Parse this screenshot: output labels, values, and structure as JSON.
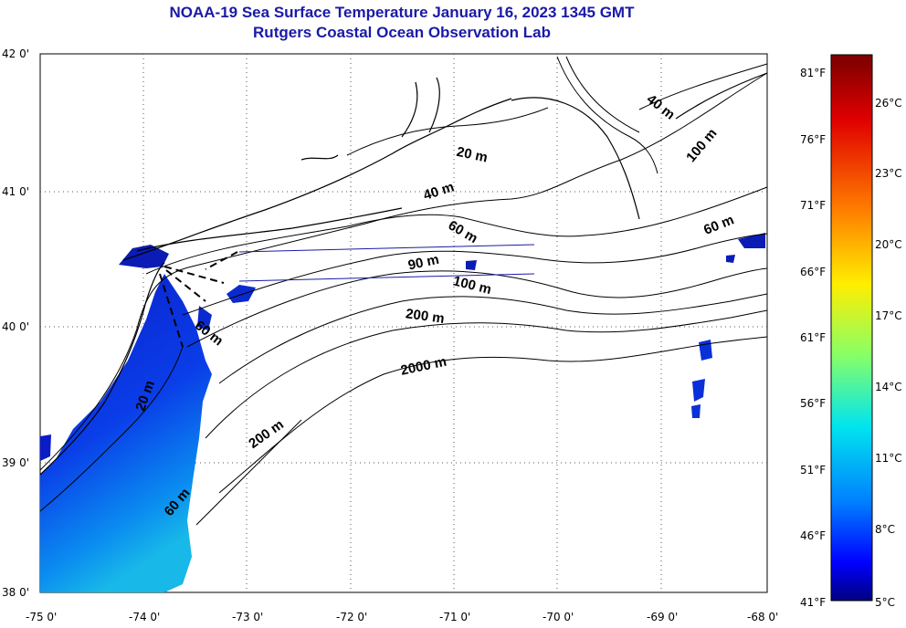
{
  "title": {
    "line1": "NOAA-19 Sea Surface Temperature January 16, 2023 1345 GMT",
    "line2": "Rutgers Coastal Ocean Observation Lab"
  },
  "map": {
    "lat_ticks": [
      "42 0'",
      "41 0'",
      "40 0'",
      "39 0'",
      "38 0'"
    ],
    "lon_ticks": [
      "-75 0'",
      "-74 0'",
      "-73 0'",
      "-72 0'",
      "-71 0'",
      "-70 0'",
      "-69 0'",
      "-68 0'"
    ],
    "lat_range": [
      38,
      42
    ],
    "lon_range": [
      -75,
      -68
    ],
    "contour_labels": [
      {
        "text": "20 m",
        "lon": -70.85,
        "lat": 41.22,
        "angle": 12
      },
      {
        "text": "40 m",
        "lon": -71.15,
        "lat": 40.95,
        "angle": -18
      },
      {
        "text": "40 m",
        "lon": -69.05,
        "lat": 41.58,
        "angle": 38
      },
      {
        "text": "100 m",
        "lon": -68.6,
        "lat": 41.3,
        "angle": -50
      },
      {
        "text": "60 m",
        "lon": -70.95,
        "lat": 40.65,
        "angle": 30
      },
      {
        "text": "60 m",
        "lon": -68.45,
        "lat": 40.7,
        "angle": -22
      },
      {
        "text": "90 m",
        "lon": -71.3,
        "lat": 40.42,
        "angle": -12
      },
      {
        "text": "100 m",
        "lon": -70.85,
        "lat": 40.25,
        "angle": 14
      },
      {
        "text": "200 m",
        "lon": -71.3,
        "lat": 40.02,
        "angle": 8
      },
      {
        "text": "2000 m",
        "lon": -71.3,
        "lat": 39.65,
        "angle": -12
      },
      {
        "text": "60 m",
        "lon": -73.4,
        "lat": 39.9,
        "angle": 38
      },
      {
        "text": "200 m",
        "lon": -72.8,
        "lat": 39.15,
        "angle": -35
      },
      {
        "text": "20 m",
        "lon": -73.95,
        "lat": 39.45,
        "angle": -70
      },
      {
        "text": "60 m",
        "lon": -73.65,
        "lat": 38.65,
        "angle": -50
      }
    ]
  },
  "colorbar": {
    "colors": [
      "#00007f",
      "#0000ff",
      "#007fff",
      "#00ffff",
      "#7fff7f",
      "#ffff00",
      "#ff7f00",
      "#ff0000",
      "#7f0000"
    ],
    "fahrenheit_ticks": [
      "81°F",
      "76°F",
      "71°F",
      "66°F",
      "61°F",
      "56°F",
      "51°F",
      "46°F",
      "41°F"
    ],
    "celsius_ticks": [
      "26°C",
      "23°C",
      "20°C",
      "17°C",
      "14°C",
      "11°C",
      "8°C",
      "5°C"
    ]
  }
}
